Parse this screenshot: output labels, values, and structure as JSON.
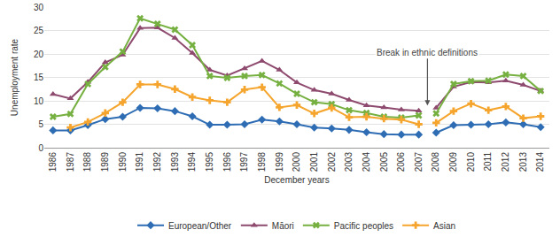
{
  "chart_data": {
    "type": "line",
    "x_label": "December years",
    "y_label": "Unemployment rate",
    "categories": [
      "1986",
      "1987",
      "1988",
      "1989",
      "1990",
      "1991",
      "1992",
      "1993",
      "1994",
      "1995",
      "1996",
      "1997",
      "1998",
      "1999",
      "2000",
      "2001",
      "2002",
      "2003",
      "2004",
      "2005",
      "2006",
      "2007",
      "2008",
      "2009",
      "2010",
      "2011",
      "2012",
      "2013",
      "2014"
    ],
    "series": [
      {
        "name": "European/Other",
        "color": "#2e6db4",
        "marker": "diamond",
        "values": [
          3.7,
          3.7,
          4.8,
          6.1,
          6.6,
          8.5,
          8.4,
          7.8,
          6.7,
          4.9,
          4.9,
          5.0,
          6.0,
          5.6,
          5.0,
          4.3,
          4.1,
          3.8,
          3.3,
          2.9,
          2.8,
          2.8,
          3.2,
          4.8,
          4.9,
          5.0,
          5.4,
          5.0,
          4.4
        ]
      },
      {
        "name": "Māori",
        "color": "#8e4a6e",
        "marker": "triangle-up",
        "values": [
          11.4,
          10.5,
          14.0,
          18.2,
          19.8,
          25.5,
          25.6,
          23.4,
          20.2,
          16.6,
          15.4,
          16.9,
          18.5,
          16.6,
          13.9,
          12.3,
          11.5,
          10.2,
          9.0,
          8.6,
          8.1,
          7.9,
          8.5,
          13.0,
          14.0,
          13.9,
          14.3,
          13.4,
          12.1
        ]
      },
      {
        "name": "Pacific peoples",
        "color": "#76b041",
        "marker": "x",
        "values": [
          6.6,
          7.2,
          13.6,
          17.2,
          20.5,
          27.6,
          26.4,
          25.2,
          21.9,
          15.3,
          14.9,
          15.3,
          15.5,
          13.7,
          11.5,
          9.7,
          9.3,
          8.0,
          7.4,
          6.6,
          6.4,
          6.9,
          7.3,
          13.6,
          14.2,
          14.3,
          15.6,
          15.3,
          12.1
        ]
      },
      {
        "name": "Asian",
        "color": "#f5a52d",
        "marker": "cross",
        "values": [
          null,
          4.3,
          5.5,
          7.4,
          9.7,
          13.5,
          13.5,
          12.5,
          10.8,
          10.1,
          9.7,
          12.4,
          12.9,
          8.6,
          9.1,
          7.3,
          8.5,
          6.5,
          6.6,
          6.2,
          6.0,
          5.0,
          5.3,
          7.8,
          9.4,
          8.0,
          8.8,
          6.3,
          6.7
        ]
      }
    ],
    "annotations": [
      {
        "text": "Break in ethnic definitions",
        "x": "2007"
      }
    ],
    "ylim": [
      0,
      30
    ],
    "yticks": [
      0,
      5,
      10,
      15,
      20,
      25,
      30
    ],
    "grid": true,
    "legend": "bottom"
  }
}
